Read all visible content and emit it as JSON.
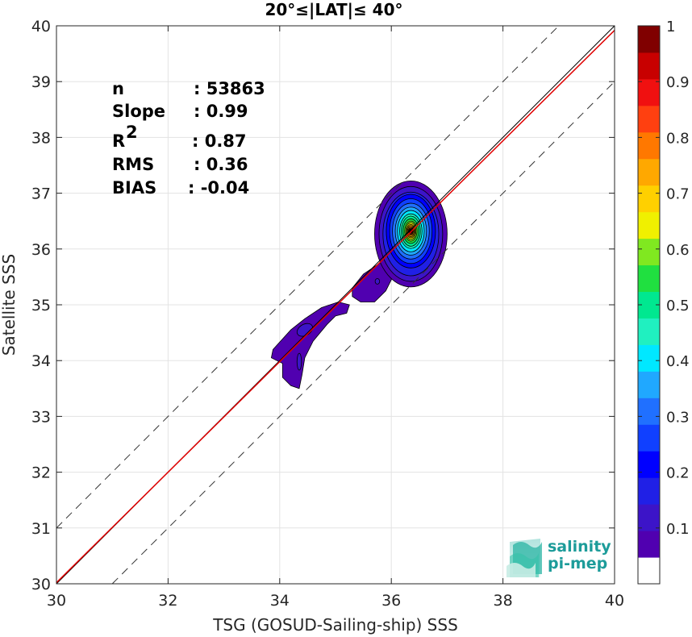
{
  "chart_data": {
    "type": "heatmap",
    "title": "20°≤|LAT|≤ 40°",
    "xlabel": "TSG (GOSUD-Sailing-ship) SSS",
    "ylabel": "Satellite SSS",
    "xlim": [
      30,
      40
    ],
    "ylim": [
      30,
      40
    ],
    "xticks": [
      30,
      32,
      34,
      36,
      38,
      40
    ],
    "yticks": [
      30,
      31,
      32,
      33,
      34,
      35,
      36,
      37,
      38,
      39,
      40
    ],
    "grid": true,
    "colorbar": {
      "range": [
        0,
        1
      ],
      "ticks": [
        0.1,
        0.2,
        0.3,
        0.4,
        0.5,
        0.6,
        0.7,
        0.8,
        0.9,
        1
      ],
      "tick_labels": [
        "0.1",
        "0.2",
        "0.3",
        "0.4",
        "0.5",
        "0.6",
        "0.7",
        "0.8",
        "0.9",
        "1"
      ],
      "levels": [
        0,
        0.05,
        0.1,
        0.15,
        0.2,
        0.25,
        0.3,
        0.35,
        0.4,
        0.45,
        0.5,
        0.55,
        0.6,
        0.65,
        0.7,
        0.75,
        0.8,
        0.85,
        0.9,
        0.95,
        1.0
      ],
      "colors": [
        "#ffffff",
        "#5000b0",
        "#3c14c8",
        "#2020e6",
        "#0000ff",
        "#1040ff",
        "#2070ff",
        "#20a8ff",
        "#00e8ff",
        "#20f0c0",
        "#00e890",
        "#20e040",
        "#80e820",
        "#f0f000",
        "#ffd000",
        "#ffa800",
        "#ff7800",
        "#ff4010",
        "#f01010",
        "#c80000",
        "#800000"
      ]
    },
    "stats": [
      {
        "label": "n",
        "value": ": 53863"
      },
      {
        "label": "Slope",
        "value": ": 0.99"
      },
      {
        "label": "R",
        "sup": "2",
        "value": ": 0.87"
      },
      {
        "label": "RMS",
        "value": ": 0.36"
      },
      {
        "label": "BIAS",
        "value": ": -0.04"
      }
    ],
    "reference_lines": {
      "identity": {
        "color": "#000000"
      },
      "regression": {
        "slope": 0.99,
        "intercept": 0.32,
        "color": "#e00000"
      },
      "offset_dashed": 1.0
    },
    "density_clusters": [
      {
        "name": "main",
        "center": [
          36.35,
          36.32
        ],
        "peak": 1.0
      },
      {
        "name": "tail",
        "center": [
          35.5,
          35.35
        ],
        "peak": 0.15
      },
      {
        "name": "low",
        "center": [
          34.5,
          34.4
        ],
        "peak": 0.2
      }
    ],
    "logo": {
      "line1": "salinity",
      "line2": "pi-mep"
    }
  }
}
